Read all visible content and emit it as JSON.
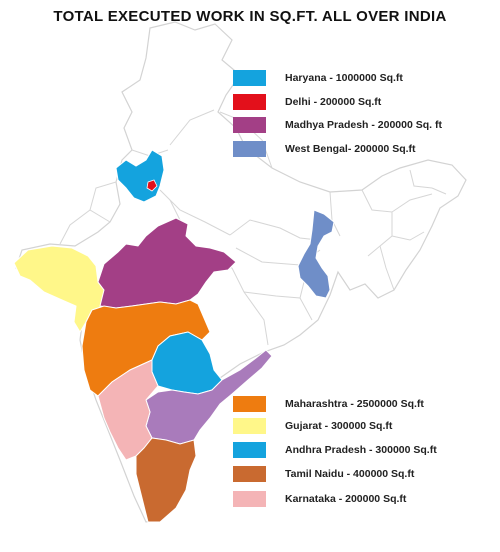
{
  "title": "TOTAL EXECUTED WORK IN SQ.FT. ALL OVER INDIA",
  "colors": {
    "haryana": "#14a3de",
    "delhi": "#e3101b",
    "madhya_pradesh": "#a33f86",
    "west_bengal": "#6f8ec8",
    "maharashtra": "#ee7c10",
    "gujarat": "#fff789",
    "andhra_pradesh": "#14a3de",
    "tamil_nadu": "#c96a30",
    "karnataka": "#f4b4b6",
    "other_states_fill": "#ffffff",
    "state_border": "#d3d3d3"
  },
  "legend_top": [
    {
      "label": "Haryana - 1000000 Sq.ft",
      "color": "#14a3de"
    },
    {
      "label": "Delhi - 200000 Sq.ft",
      "color": "#e3101b"
    },
    {
      "label": "Madhya Pradesh -  200000 Sq. ft",
      "color": "#a33f86"
    },
    {
      "label": "West Bengal- 200000 Sq.ft",
      "color": "#6f8ec8"
    }
  ],
  "legend_bottom": [
    {
      "label": "Maharashtra -  2500000 Sq.ft",
      "color": "#ee7c10"
    },
    {
      "label": "Gujarat -  300000  Sq.ft",
      "color": "#fff789"
    },
    {
      "label": "Andhra Pradesh  - 300000 Sq.ft",
      "color": "#14a3de"
    },
    {
      "label": "Tamil Naidu - 400000 Sq.ft",
      "color": "#c96a30"
    },
    {
      "label": "Karnataka  - 200000 Sq.ft",
      "color": "#f4b4b6"
    }
  ]
}
